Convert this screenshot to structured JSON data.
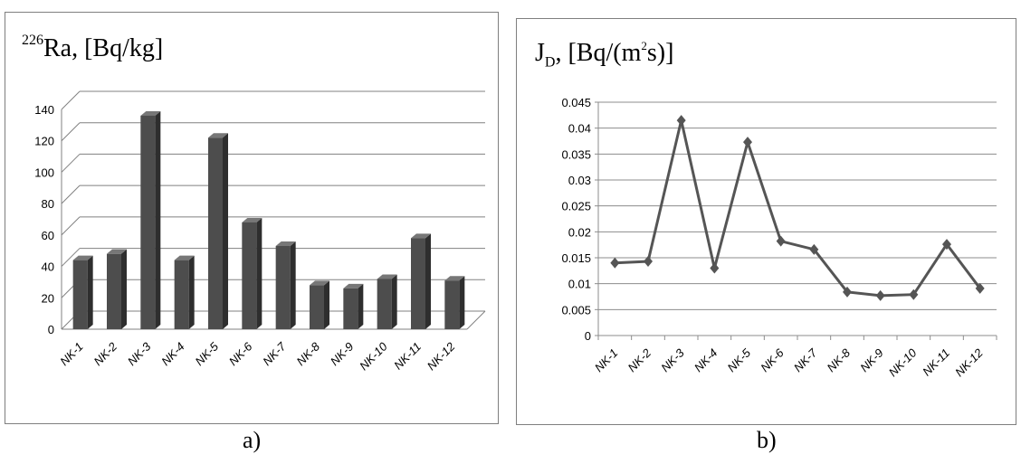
{
  "chart_data": [
    {
      "type": "bar",
      "title_parts": {
        "sup": "226",
        "main": "Ra, [Bq/kg]"
      },
      "categories": [
        "NK-1",
        "NK-2",
        "NK-3",
        "NK-4",
        "NK-5",
        "NK-6",
        "NK-7",
        "NK-8",
        "NK-9",
        "NK-10",
        "NK-11",
        "NK-12"
      ],
      "values": [
        44,
        48,
        136,
        44,
        122,
        68,
        53,
        28,
        26,
        32,
        58,
        31
      ],
      "yticks": [
        0,
        20,
        40,
        60,
        80,
        100,
        120,
        140
      ],
      "ylim": [
        0,
        140
      ],
      "grid": true,
      "legend": "none",
      "bar_color": "#4d4d4d",
      "caption": "a)"
    },
    {
      "type": "line",
      "title_parts": {
        "main": "J",
        "sub": "D",
        "rest_a": ", [Bq/(m",
        "sup": "2",
        "rest_b": "s)]"
      },
      "categories": [
        "NK-1",
        "NK-2",
        "NK-3",
        "NK-4",
        "NK-5",
        "NK-6",
        "NK-7",
        "NK-8",
        "NK-9",
        "NK-10",
        "NK-11",
        "NK-12"
      ],
      "values": [
        0.014,
        0.0143,
        0.0415,
        0.013,
        0.0373,
        0.0182,
        0.0166,
        0.0084,
        0.0077,
        0.0079,
        0.0176,
        0.0091
      ],
      "yticks": [
        "0",
        "0.005",
        "0.01",
        "0.015",
        "0.02",
        "0.025",
        "0.03",
        "0.035",
        "0.04",
        "0.045"
      ],
      "ylim": [
        0,
        0.045
      ],
      "grid": true,
      "legend": "none",
      "line_color": "#555555",
      "caption": "b)"
    }
  ]
}
